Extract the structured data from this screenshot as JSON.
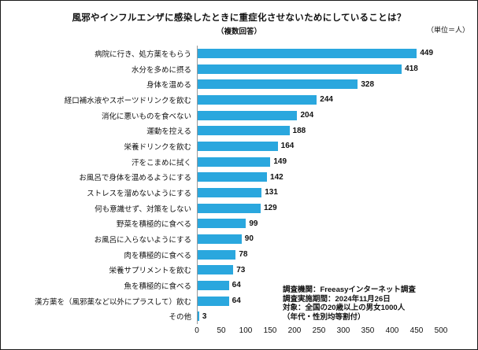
{
  "meta": {
    "title": "風邪やインフルエンザに感染したときに重症化させないためにしていることは？",
    "subtitle": "（複数回答）",
    "unit_label": "（単位＝人）"
  },
  "chart_data": {
    "type": "bar",
    "orientation": "horizontal",
    "title": "風邪やインフルエンザに感染したときに重症化させないためにしていることは？（複数回答）",
    "categories": [
      "病院に行き、処方薬をもらう",
      "水分を多めに摂る",
      "身体を温める",
      "経口補水液やスポーツドリンクを飲む",
      "消化に悪いものを食べない",
      "運動を控える",
      "栄養ドリンクを飲む",
      "汗をこまめに拭く",
      "お風呂で身体を温めるようにする",
      "ストレスを溜めないようにする",
      "何も意識せず、対策をしない",
      "野菜を積極的に食べる",
      "お風呂に入らないようにする",
      "肉を積極的に食べる",
      "栄養サプリメントを飲む",
      "魚を積極的に食べる",
      "漢方薬を（風邪薬など以外にプラスして）飲む",
      "その他"
    ],
    "values": [
      449,
      418,
      328,
      244,
      204,
      188,
      164,
      149,
      142,
      131,
      129,
      99,
      90,
      78,
      73,
      64,
      64,
      3
    ],
    "xlabel": "",
    "ylabel": "",
    "xlim": [
      0,
      500
    ],
    "x_ticks": [
      0,
      50,
      100,
      150,
      200,
      250,
      300,
      350,
      400,
      450,
      500
    ],
    "bar_color": "#2aa7de",
    "value_labels": true,
    "grid": false,
    "legend": "none"
  },
  "footnote": {
    "lines": [
      "調査機関：Freeasyインターネット調査",
      "調査実施期間：2024年11月26日",
      "対象：全国の20歳以上の男女1000人",
      "（年代・性別均等割付）"
    ]
  }
}
